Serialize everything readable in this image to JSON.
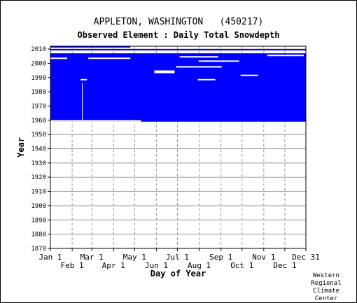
{
  "title": "APPLETON, WASHINGTON   (450217)",
  "subtitle": "Observed Element : Daily Total Snowdepth",
  "credit": [
    "Western",
    "Regional",
    "Climate",
    "Center"
  ],
  "colors": {
    "data": "#0000ff",
    "grid": "#9a9a9a",
    "axis": "#000000",
    "background": "#ffffff"
  },
  "chart_data": {
    "type": "heatmap",
    "title": "APPLETON, WASHINGTON   (450217)",
    "subtitle": "Observed Element : Daily Total Snowdepth",
    "xlabel": "Day of Year",
    "ylabel": "Year",
    "xlim": [
      1,
      365
    ],
    "ylim": [
      1870,
      2012
    ],
    "grid": true,
    "x_ticks_top_row": [
      {
        "label": "Jan 1",
        "day": 1
      },
      {
        "label": "Mar 1",
        "day": 60
      },
      {
        "label": "May 1",
        "day": 121
      },
      {
        "label": "Jul 1",
        "day": 182
      },
      {
        "label": "Sep 1",
        "day": 244
      },
      {
        "label": "Nov 1",
        "day": 305
      },
      {
        "label": "Dec 31",
        "day": 365
      }
    ],
    "x_ticks_bottom_row": [
      {
        "label": "Feb 1",
        "day": 32
      },
      {
        "label": "Apr 1",
        "day": 91
      },
      {
        "label": "Jun 1",
        "day": 152
      },
      {
        "label": "Aug 1",
        "day": 213
      },
      {
        "label": "Oct 1",
        "day": 274
      },
      {
        "label": "Dec 1",
        "day": 335
      }
    ],
    "y_ticks": [
      1870,
      1880,
      1890,
      1900,
      1910,
      1920,
      1930,
      1940,
      1950,
      1960,
      1970,
      1980,
      1990,
      2000,
      2010
    ],
    "observed_periods": [
      {
        "year_start": 1959,
        "year_end": 2006,
        "day_start": 1,
        "day_end": 365
      },
      {
        "year_start": 2009,
        "year_end": 2009,
        "day_start": 1,
        "day_end": 365
      },
      {
        "year_start": 2011,
        "year_end": 2011,
        "day_start": 1,
        "day_end": 115
      }
    ],
    "missing_gaps": [
      {
        "year_start": 1993,
        "year_end": 1994,
        "day_start": 149,
        "day_end": 178
      },
      {
        "year_start": 1997,
        "year_end": 1997,
        "day_start": 180,
        "day_end": 245
      },
      {
        "year_start": 2001,
        "year_end": 2001,
        "day_start": 212,
        "day_end": 270
      },
      {
        "year_start": 1988,
        "year_end": 1988,
        "day_start": 211,
        "day_end": 236
      },
      {
        "year_start": 1991,
        "year_end": 1991,
        "day_start": 272,
        "day_end": 297
      },
      {
        "year_start": 1988,
        "year_end": 1988,
        "day_start": 44,
        "day_end": 53
      },
      {
        "year_start": 1960,
        "year_end": 1985,
        "day_start": 46,
        "day_end": 47
      },
      {
        "year_start": 1959,
        "year_end": 1959,
        "day_start": 1,
        "day_end": 130
      },
      {
        "year_start": 2003,
        "year_end": 2003,
        "day_start": 1,
        "day_end": 25
      },
      {
        "year_start": 2003,
        "year_end": 2003,
        "day_start": 55,
        "day_end": 115
      },
      {
        "year_start": 2004,
        "year_end": 2004,
        "day_start": 185,
        "day_end": 240
      },
      {
        "year_start": 2005,
        "year_end": 2005,
        "day_start": 310,
        "day_end": 362
      }
    ]
  }
}
